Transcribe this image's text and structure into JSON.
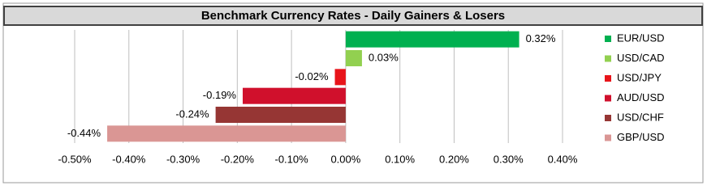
{
  "chart_data": {
    "type": "hbar",
    "title": "Benchmark Currency Rates - Daily Gainers & Losers",
    "categories": [
      "EUR/USD",
      "USD/CAD",
      "USD/JPY",
      "AUD/USD",
      "USD/CHF",
      "GBP/USD"
    ],
    "values": [
      0.32,
      0.03,
      -0.02,
      -0.19,
      -0.24,
      -0.44
    ],
    "value_labels": [
      "0.32%",
      "0.03%",
      "-0.02%",
      "-0.19%",
      "-0.24%",
      "-0.44%"
    ],
    "colors": [
      "#00b050",
      "#92d050",
      "#e8141a",
      "#d0102c",
      "#963634",
      "#da9694"
    ],
    "xlim": [
      -0.5,
      0.4
    ],
    "xticks": [
      {
        "value": -0.5,
        "label": "-0.50%"
      },
      {
        "value": -0.4,
        "label": "-0.40%"
      },
      {
        "value": -0.3,
        "label": "-0.30%"
      },
      {
        "value": -0.2,
        "label": "-0.20%"
      },
      {
        "value": -0.1,
        "label": "-0.10%"
      },
      {
        "value": 0,
        "label": "0.00%"
      },
      {
        "value": 0.1,
        "label": "0.10%"
      },
      {
        "value": 0.2,
        "label": "0.20%"
      },
      {
        "value": 0.3,
        "label": "0.30%"
      },
      {
        "value": 0.4,
        "label": "0.40%"
      }
    ],
    "grid": true,
    "legend": "right"
  }
}
